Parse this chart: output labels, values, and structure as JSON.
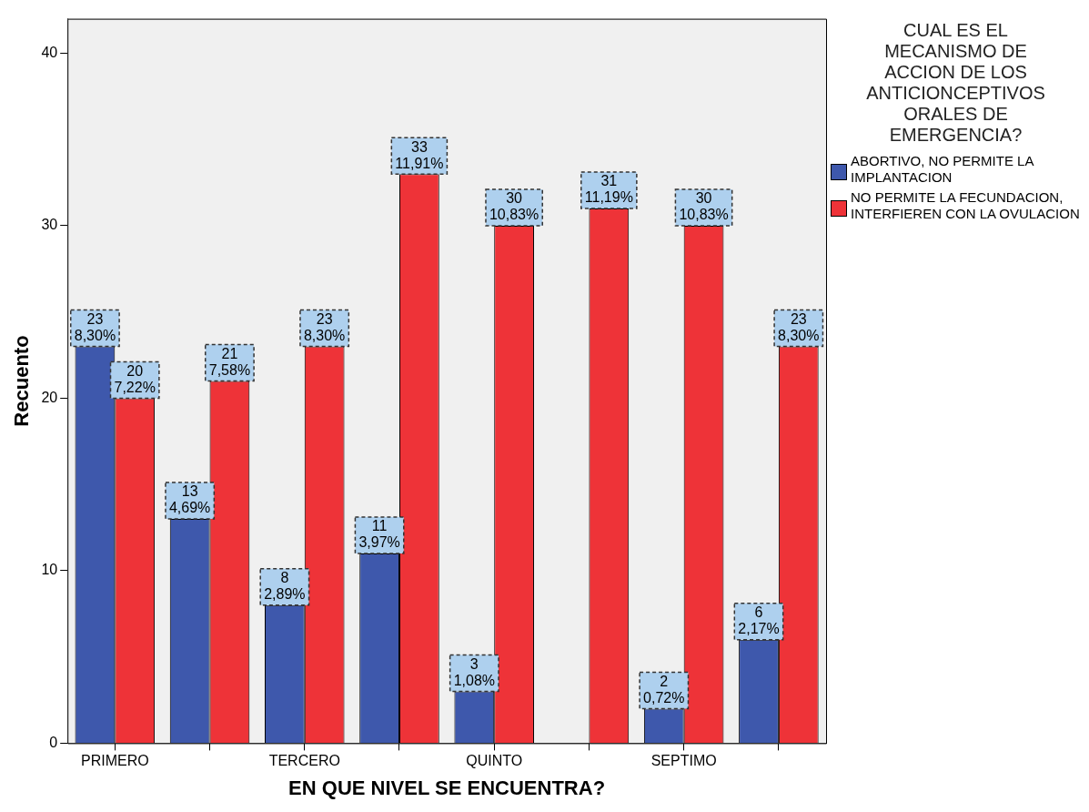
{
  "chart_data": {
    "type": "bar",
    "xlabel": "EN QUE NIVEL SE ENCUENTRA?",
    "ylabel": "Recuento",
    "legend_title": "CUAL ES EL MECANISMO DE ACCION DE LOS ANTICIONCEPTIVOS ORALES DE EMERGENCIA?",
    "categories": [
      "PRIMERO",
      null,
      "TERCERO",
      null,
      "QUINTO",
      null,
      "SEPTIMO",
      null
    ],
    "series": [
      {
        "name": "ABORTIVO, NO PERMITE LA IMPLANTACION",
        "color": "#3e58ac",
        "values": [
          23,
          13,
          8,
          11,
          3,
          null,
          2,
          6
        ],
        "value_labels": [
          "23\n8,30%",
          "13\n4,69%",
          "8\n2,89%",
          "11\n3,97%",
          "3\n1,08%",
          null,
          "2\n0,72%",
          "6\n2,17%"
        ]
      },
      {
        "name": "NO PERMITE LA FECUNDACION, INTERFIEREN CON LA OVULACION",
        "color": "#ee3338",
        "values": [
          20,
          21,
          23,
          33,
          30,
          31,
          30,
          23
        ],
        "value_labels": [
          "20\n7,22%",
          "21\n7,58%",
          "23\n8,30%",
          "33\n11,91%",
          "30\n10,83%",
          "31\n11,19%",
          "30\n10,83%",
          "23\n8,30%"
        ]
      }
    ],
    "ylim": [
      0,
      42
    ],
    "yticks": [
      0,
      10,
      20,
      30,
      40
    ],
    "grid": false,
    "legend": "right"
  }
}
